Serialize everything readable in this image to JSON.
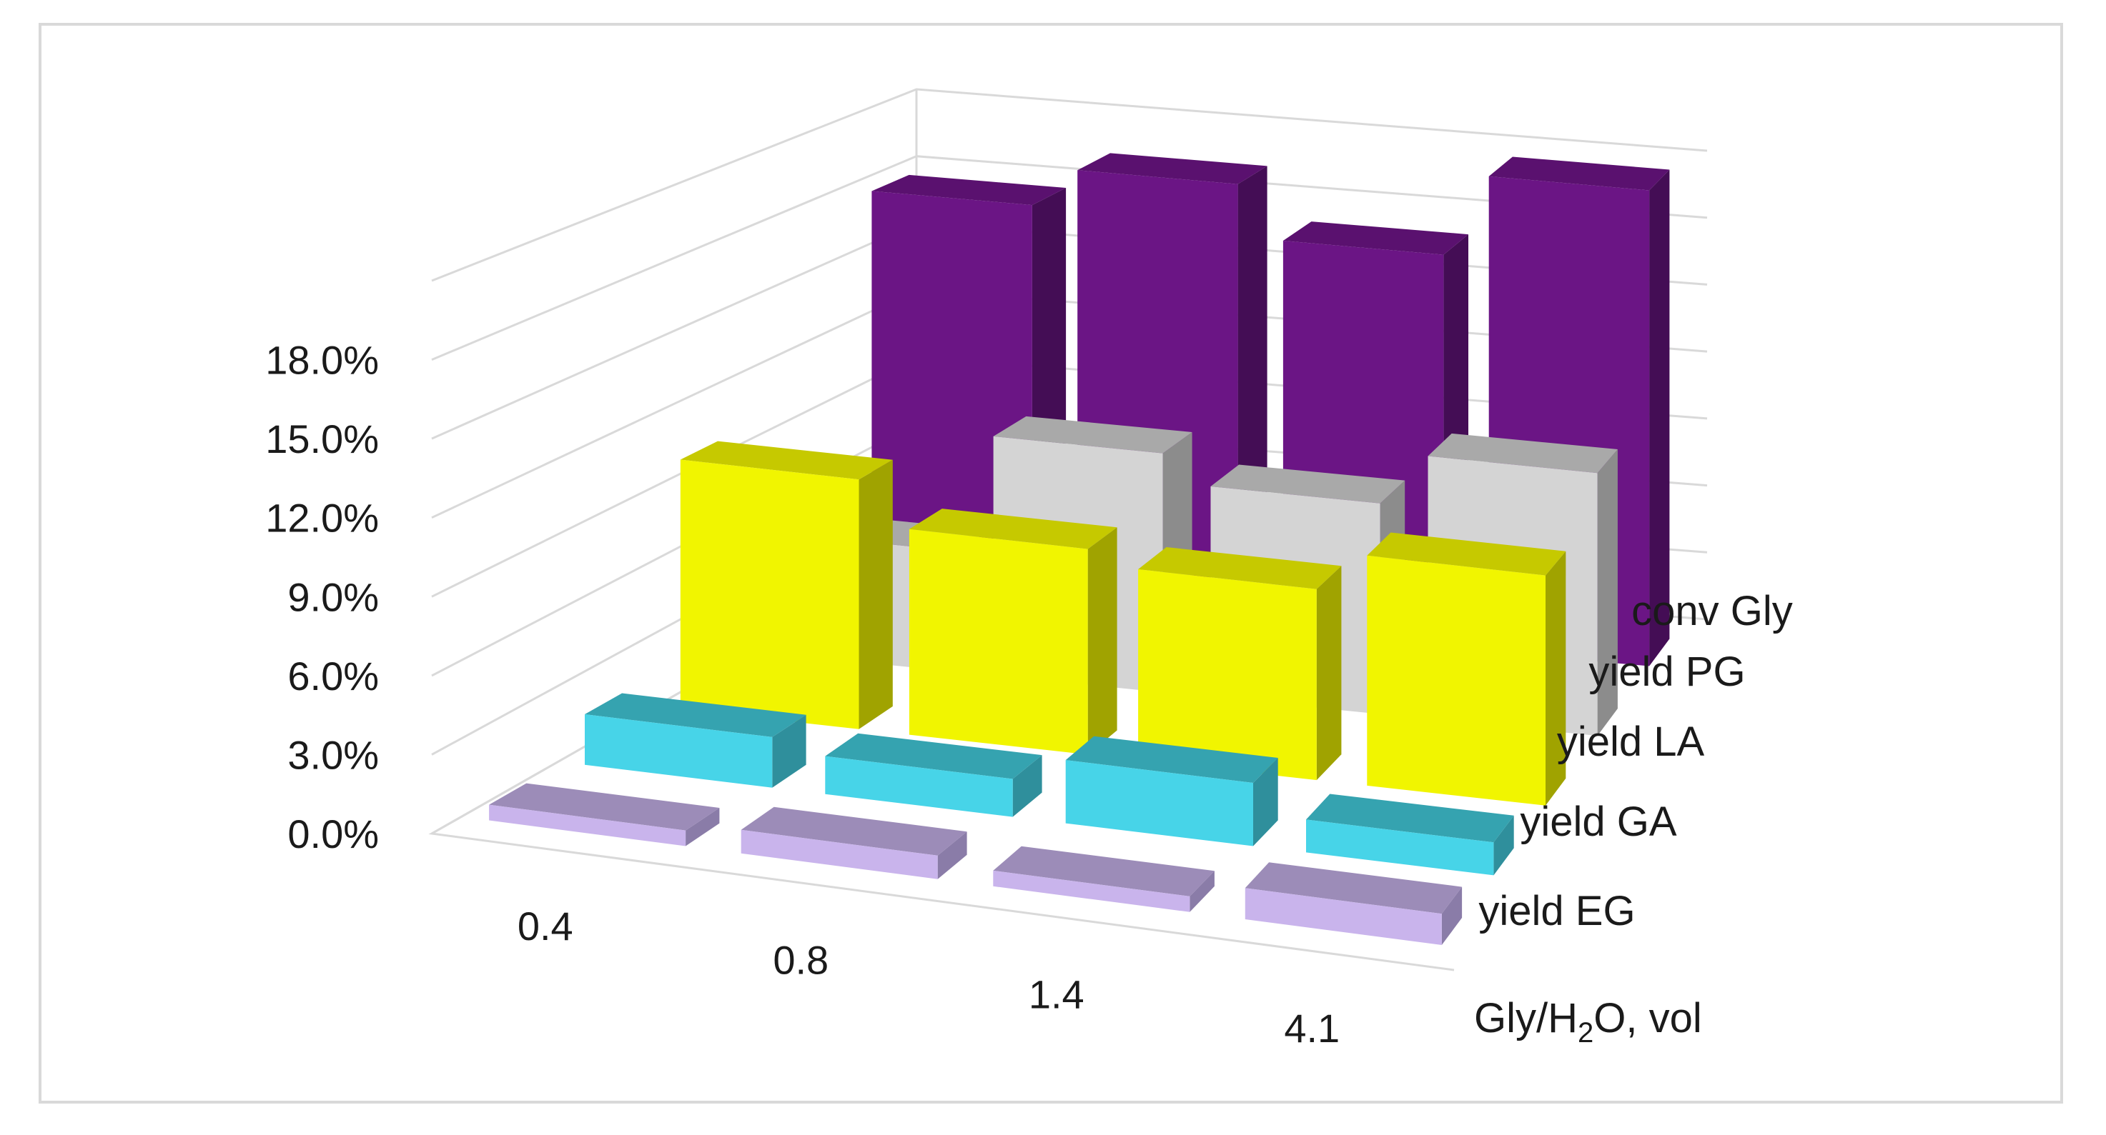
{
  "chart_data": {
    "type": "bar",
    "variant": "3d-column",
    "title": "",
    "categories": [
      "0.4",
      "0.8",
      "1.4",
      "4.1"
    ],
    "xlabel": "Gly/H2O, vol",
    "xlabel_parts": {
      "base": "Gly/H",
      "sub": "2",
      "tail": "O, vol"
    },
    "ylabel": "",
    "ylim": [
      0,
      21
    ],
    "yticks": [
      0,
      3,
      6,
      9,
      12,
      15,
      18
    ],
    "ytick_labels": [
      "0.0%",
      "3.0%",
      "6.0%",
      "9.0%",
      "12.0%",
      "15.0%",
      "18.0%"
    ],
    "grid": true,
    "legend": "none",
    "series": [
      {
        "name": "yield EG",
        "values": [
          0.6,
          0.9,
          0.6,
          1.2
        ],
        "color": "#c9b4ec",
        "color_top": "#9c8cb8",
        "color_side": "#8a7ca8"
      },
      {
        "name": "yield GA",
        "values": [
          2.0,
          1.5,
          2.5,
          1.3
        ],
        "color": "#47d4e8",
        "color_top": "#35a3b0",
        "color_side": "#2f8f9c"
      },
      {
        "name": "yield LA",
        "values": [
          10.2,
          8.4,
          7.8,
          9.4
        ],
        "color": "#f1f500",
        "color_top": "#c6c900",
        "color_side": "#a0a300"
      },
      {
        "name": "yield PG",
        "values": [
          5.1,
          10.1,
          8.9,
          11.1
        ],
        "color": "#d4d4d4",
        "color_top": "#a9a9a9",
        "color_side": "#8c8c8c"
      },
      {
        "name": "conv Gly",
        "values": [
          17.8,
          19.5,
          17.2,
          20.8
        ],
        "color": "#6b1585",
        "color_top": "#5a116f",
        "color_side": "#440d55"
      }
    ]
  }
}
